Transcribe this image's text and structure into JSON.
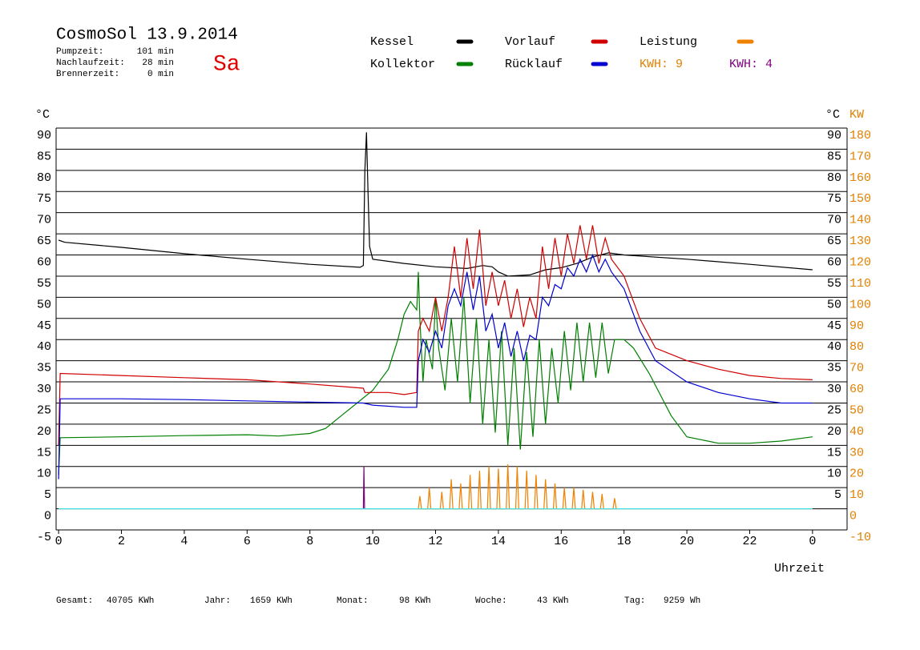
{
  "header": {
    "title": "CosmoSol 13.9.2014",
    "day": "Sa",
    "info": [
      {
        "label": "Pumpzeit:",
        "value": "101 min"
      },
      {
        "label": "Nachlaufzeit:",
        "value": "28 min"
      },
      {
        "label": "Brennerzeit:",
        "value": "0 min"
      }
    ]
  },
  "chart_data": {
    "type": "line",
    "xlabel": "Uhrzeit",
    "ylabel": "°C",
    "ylabel_right": "°C",
    "y2label": "KW",
    "xlim": [
      -0.08,
      25.1
    ],
    "xticks": [
      0,
      2,
      4,
      6,
      8,
      10,
      12,
      14,
      16,
      18,
      20,
      22,
      {
        "value": 24,
        "label": "0"
      }
    ],
    "ylim": [
      -5,
      90
    ],
    "yticks": [
      -5,
      0,
      5,
      10,
      15,
      20,
      25,
      30,
      35,
      40,
      45,
      50,
      55,
      60,
      65,
      70,
      75,
      80,
      85,
      90
    ],
    "yticks_right": [
      5,
      10,
      15,
      20,
      25,
      30,
      35,
      40,
      45,
      50,
      55,
      60,
      65,
      70,
      75,
      80,
      85,
      90
    ],
    "y2lim": [
      -10,
      180
    ],
    "y2ticks": [
      -10,
      0,
      10,
      20,
      30,
      40,
      50,
      60,
      70,
      80,
      90,
      100,
      110,
      120,
      130,
      140,
      150,
      160,
      170,
      180
    ],
    "y2color": "#e08000",
    "grid": true,
    "series": [
      {
        "name": "Kessel",
        "color": "#000000",
        "x": [
          0,
          0.2,
          2,
          4,
          6,
          8,
          9.6,
          9.7,
          9.75,
          9.8,
          9.85,
          9.9,
          10,
          11,
          12,
          13,
          13.5,
          13.8,
          14,
          14.3,
          15,
          15.5,
          16,
          16.5,
          17,
          17.5,
          18,
          20,
          22,
          24
        ],
        "values": [
          63.5,
          63,
          61.8,
          60.3,
          59,
          57.8,
          57.1,
          57.5,
          80,
          89,
          75,
          62,
          59,
          58,
          57.2,
          56.8,
          57.5,
          57.2,
          56,
          55,
          55.3,
          56.5,
          57,
          58,
          59.5,
          60.5,
          60,
          59,
          57.8,
          56.5
        ]
      },
      {
        "name": "Kollektor",
        "color": "#008000",
        "x": [
          0,
          0.05,
          2,
          4,
          6,
          7,
          8,
          8.5,
          9,
          9.5,
          10,
          10.5,
          10.8,
          11,
          11.2,
          11.4,
          11.45,
          11.5,
          11.6,
          11.7,
          11.9,
          12,
          12.1,
          12.3,
          12.5,
          12.7,
          12.9,
          13.1,
          13.3,
          13.5,
          13.7,
          13.9,
          14.1,
          14.3,
          14.5,
          14.7,
          14.9,
          15.1,
          15.3,
          15.5,
          15.7,
          15.9,
          16.1,
          16.3,
          16.5,
          16.7,
          16.9,
          17.1,
          17.3,
          17.5,
          17.7,
          18,
          18.3,
          18.8,
          19.5,
          20,
          21,
          22,
          23,
          24
        ],
        "values": [
          8,
          16.8,
          17,
          17.3,
          17.5,
          17.2,
          17.8,
          19,
          22,
          25,
          28,
          33,
          40,
          46,
          49,
          47,
          56,
          45,
          30,
          40,
          33,
          50,
          38,
          28,
          45,
          30,
          50,
          25,
          45,
          20,
          40,
          18,
          42,
          15,
          38,
          14,
          37,
          17,
          40,
          20,
          38,
          25,
          42,
          28,
          44,
          30,
          44,
          31,
          44,
          32,
          40,
          40,
          38,
          32,
          22,
          17,
          15.5,
          15.5,
          16,
          17
        ]
      },
      {
        "name": "Vorlauf",
        "color": "#d00000",
        "x": [
          0,
          0.05,
          2,
          4,
          6,
          8,
          9.7,
          9.75,
          10.5,
          11,
          11.4,
          11.45,
          11.6,
          11.8,
          12,
          12.2,
          12.4,
          12.6,
          12.8,
          13,
          13.2,
          13.4,
          13.6,
          13.8,
          14,
          14.2,
          14.4,
          14.6,
          14.8,
          15,
          15.2,
          15.4,
          15.6,
          15.8,
          16,
          16.2,
          16.4,
          16.6,
          16.8,
          17,
          17.2,
          17.4,
          17.6,
          18,
          18.5,
          19,
          20,
          21,
          22,
          23,
          24
        ],
        "values": [
          15,
          32,
          31.5,
          31,
          30.5,
          29.5,
          28.5,
          27.5,
          27.5,
          27,
          27.5,
          42,
          45,
          42,
          50,
          42,
          50,
          62,
          50,
          64,
          52,
          66,
          48,
          56,
          48,
          54,
          45,
          52,
          43,
          50,
          45,
          62,
          52,
          64,
          55,
          65,
          58,
          67,
          59,
          67,
          58,
          64,
          59,
          55,
          45,
          38,
          35,
          33,
          31.5,
          30.8,
          30.5
        ]
      },
      {
        "name": "Rücklauf",
        "color": "#0000d0",
        "x": [
          0,
          0.05,
          2,
          4,
          6,
          8,
          9.7,
          10,
          11,
          11.4,
          11.45,
          11.6,
          11.8,
          12,
          12.2,
          12.4,
          12.6,
          12.8,
          13,
          13.2,
          13.4,
          13.6,
          13.8,
          14,
          14.2,
          14.4,
          14.6,
          14.8,
          15,
          15.2,
          15.4,
          15.6,
          15.8,
          16,
          16.2,
          16.4,
          16.6,
          16.8,
          17,
          17.2,
          17.4,
          17.6,
          18,
          18.5,
          19,
          20,
          21,
          22,
          23,
          24
        ],
        "values": [
          7,
          26,
          26,
          25.8,
          25.5,
          25.2,
          25,
          24.5,
          24,
          24,
          35,
          40,
          37,
          42,
          38,
          48,
          52,
          48,
          56,
          47,
          55,
          42,
          46,
          38,
          44,
          36,
          42,
          35,
          41,
          40,
          50,
          48,
          53,
          52,
          57,
          55,
          59,
          56,
          60,
          56,
          59,
          56,
          52,
          42,
          35,
          30,
          27.5,
          26,
          25,
          25
        ]
      },
      {
        "name": "Leistung",
        "color": "#f08000",
        "axis": "y2",
        "x": [
          11.45,
          11.5,
          11.55,
          11.75,
          11.8,
          11.85,
          12.15,
          12.2,
          12.25,
          12.45,
          12.5,
          12.55,
          12.75,
          12.8,
          12.85,
          13.05,
          13.1,
          13.15,
          13.35,
          13.4,
          13.45,
          13.65,
          13.7,
          13.75,
          13.95,
          14.0,
          14.05,
          14.25,
          14.3,
          14.35,
          14.55,
          14.6,
          14.65,
          14.85,
          14.9,
          14.95,
          15.15,
          15.2,
          15.25,
          15.45,
          15.5,
          15.55,
          15.75,
          15.8,
          15.85,
          16.05,
          16.1,
          16.15,
          16.35,
          16.4,
          16.45,
          16.65,
          16.7,
          16.75,
          16.95,
          17.0,
          17.05,
          17.25,
          17.3,
          17.35,
          17.65,
          17.7,
          17.75
        ],
        "values": [
          0,
          6,
          0,
          0,
          10,
          0,
          0,
          8,
          0,
          0,
          14,
          0,
          0,
          12,
          0,
          0,
          16,
          0,
          0,
          18,
          0,
          0,
          20,
          0,
          0,
          19,
          0,
          0,
          21,
          0,
          0,
          20,
          0,
          0,
          18,
          0,
          0,
          16,
          0,
          0,
          14,
          0,
          0,
          12,
          0,
          0,
          10,
          0,
          0,
          10,
          0,
          0,
          9,
          0,
          0,
          8,
          0,
          0,
          7,
          0,
          0,
          5,
          0
        ]
      },
      {
        "color": "#800080",
        "axis": "y2",
        "x": [
          9.7,
          9.72,
          9.74
        ],
        "values": [
          0,
          20,
          0
        ]
      },
      {
        "color": "#40e0e0",
        "axis": "y2",
        "x": [
          0,
          24
        ],
        "values": [
          0,
          0
        ]
      }
    ],
    "kwh_labels": [
      {
        "text": "KWH: 9",
        "color": "#e08000"
      },
      {
        "text": "KWH: 4",
        "color": "#800080"
      }
    ]
  },
  "footer": [
    {
      "label": "Gesamt:",
      "value": "40705 KWh"
    },
    {
      "label": "Jahr:",
      "value": "1659 KWh"
    },
    {
      "label": "Monat:",
      "value": "98 KWh"
    },
    {
      "label": "Woche:",
      "value": "43 KWh"
    },
    {
      "label": "Tag:",
      "value": "9259 Wh"
    }
  ]
}
